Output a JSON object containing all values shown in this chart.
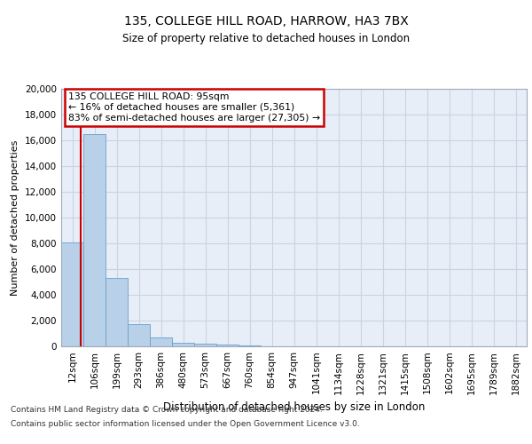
{
  "title1": "135, COLLEGE HILL ROAD, HARROW, HA3 7BX",
  "title2": "Size of property relative to detached houses in London",
  "xlabel": "Distribution of detached houses by size in London",
  "ylabel": "Number of detached properties",
  "bar_color": "#b8d0e8",
  "bar_edge_color": "#6aa0cc",
  "grid_color": "#c8d4e4",
  "background_color": "#e8eef8",
  "annotation_line1": "135 COLLEGE HILL ROAD: 95sqm",
  "annotation_line2": "← 16% of detached houses are smaller (5,361)",
  "annotation_line3": "83% of semi-detached houses are larger (27,305) →",
  "vline_color": "#cc0000",
  "property_sqm": 95,
  "categories": [
    "12sqm",
    "106sqm",
    "199sqm",
    "293sqm",
    "386sqm",
    "480sqm",
    "573sqm",
    "667sqm",
    "760sqm",
    "854sqm",
    "947sqm",
    "1041sqm",
    "1134sqm",
    "1228sqm",
    "1321sqm",
    "1415sqm",
    "1508sqm",
    "1602sqm",
    "1695sqm",
    "1789sqm",
    "1882sqm"
  ],
  "bin_edges": [
    12,
    106,
    199,
    293,
    386,
    480,
    573,
    667,
    760,
    854,
    947,
    1041,
    1134,
    1228,
    1321,
    1415,
    1508,
    1602,
    1695,
    1789,
    1882
  ],
  "values": [
    8100,
    16500,
    5300,
    1750,
    700,
    270,
    200,
    130,
    90,
    0,
    0,
    0,
    0,
    0,
    0,
    0,
    0,
    0,
    0,
    0,
    0
  ],
  "ylim": [
    0,
    20000
  ],
  "yticks": [
    0,
    2000,
    4000,
    6000,
    8000,
    10000,
    12000,
    14000,
    16000,
    18000,
    20000
  ],
  "footer_line1": "Contains HM Land Registry data © Crown copyright and database right 2024.",
  "footer_line2": "Contains public sector information licensed under the Open Government Licence v3.0."
}
